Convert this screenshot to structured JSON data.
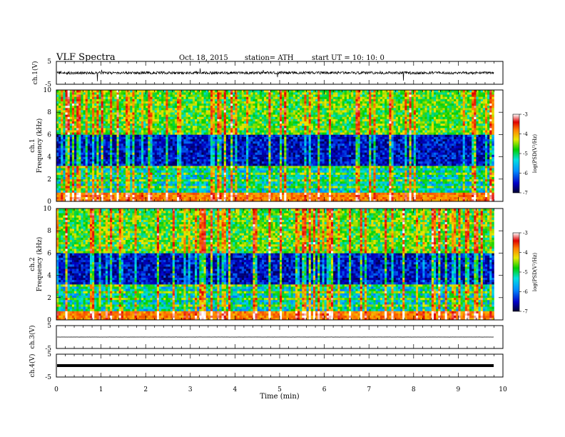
{
  "header": {
    "title": "VLF  Spectra",
    "date": "Oct. 18, 2015",
    "station": "station= ATH",
    "start": "start  UT  =    10: 10: 0"
  },
  "chart_data": [
    {
      "type": "line",
      "name": "ch1-waveform",
      "ylabel": "ch.1(V)",
      "yticks": [
        "5",
        "-5"
      ],
      "ylim": [
        -5,
        5
      ],
      "xlim": [
        0,
        10
      ],
      "data_end_min": 9.8,
      "baseline_V": 0.0,
      "noise_amplitude_V": 1.2
    },
    {
      "type": "heatmap",
      "name": "ch1-spectrogram",
      "ylabel_channel": "ch.1",
      "ylabel": "Frequency  (kHz)",
      "yticks": [
        "0",
        "2",
        "4",
        "6",
        "8",
        "10"
      ],
      "ylim": [
        0,
        10
      ],
      "xlim": [
        0,
        10
      ],
      "data_end_min": 9.8,
      "colorbar": {
        "label": "log(PSD(V²/Hz)",
        "ticks": [
          "-3",
          "-4",
          "-5",
          "-6",
          "-7"
        ],
        "range": [
          -7,
          -3
        ]
      }
    },
    {
      "type": "heatmap",
      "name": "ch2-spectrogram",
      "ylabel_channel": "ch.2",
      "ylabel": "Frequency  (kHz)",
      "yticks": [
        "0",
        "2",
        "4",
        "6",
        "8",
        "10"
      ],
      "ylim": [
        0,
        10
      ],
      "xlim": [
        0,
        10
      ],
      "data_end_min": 9.8,
      "colorbar": {
        "label": "log(PSD(V²/Hz)",
        "ticks": [
          "-3",
          "-4",
          "-5",
          "-6",
          "-7"
        ],
        "range": [
          -7,
          -3
        ]
      }
    },
    {
      "type": "line",
      "name": "ch3-waveform",
      "ylabel": "ch.3(V)",
      "yticks": [
        "5",
        "-5"
      ],
      "ylim": [
        -5,
        5
      ],
      "xlim": [
        0,
        10
      ],
      "data_end_min": 9.8,
      "baseline_V": 0.0,
      "noise_amplitude_V": 0.05
    },
    {
      "type": "line",
      "name": "ch4-waveform",
      "ylabel": "ch.4(V)",
      "yticks": [
        "5",
        "-5"
      ],
      "ylim": [
        -5,
        5
      ],
      "xlim": [
        0,
        10
      ],
      "data_end_min": 9.8,
      "baseline_V": 0.0,
      "noise_amplitude_V": 0.0
    }
  ],
  "xaxis": {
    "label": "Time  (min)",
    "ticks": [
      "0",
      "1",
      "2",
      "3",
      "4",
      "5",
      "6",
      "7",
      "8",
      "9",
      "10"
    ]
  }
}
